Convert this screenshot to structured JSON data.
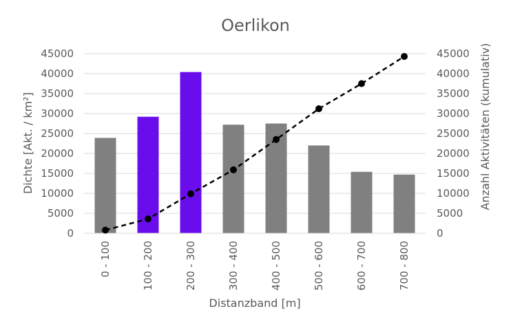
{
  "chart_data": {
    "type": "bar",
    "title": "Oerlikon",
    "xlabel": "Distanzband [m]",
    "ylabel": "Dichte [Akt. / km²]",
    "y2label": "Anzahl Aktivitäten (kumulativ)",
    "categories": [
      "0 - 100",
      "100 - 200",
      "200 - 300",
      "300 - 400",
      "400 - 500",
      "500 - 600",
      "600 - 700",
      "700 - 800"
    ],
    "ylim": [
      0,
      45000
    ],
    "y2lim": [
      0,
      45000
    ],
    "yticks": [
      "0",
      "5000",
      "10000",
      "15000",
      "20000",
      "25000",
      "30000",
      "35000",
      "40000",
      "45000"
    ],
    "y2ticks": [
      "0",
      "5000",
      "10000",
      "15000",
      "20000",
      "25000",
      "30000",
      "35000",
      "40000",
      "45000"
    ],
    "grid": true,
    "series": [
      {
        "type": "bar",
        "axis": "left",
        "values": [
          23900,
          29200,
          40400,
          27200,
          27500,
          22000,
          15400,
          14700
        ],
        "colors": [
          "#808080",
          "#6a0ded",
          "#6a0ded",
          "#808080",
          "#808080",
          "#808080",
          "#808080",
          "#808080"
        ]
      },
      {
        "type": "line",
        "axis": "right",
        "style": "dashed",
        "color": "#000000",
        "values": [
          800,
          3600,
          9900,
          15900,
          23500,
          31200,
          37500,
          44300
        ]
      }
    ]
  }
}
